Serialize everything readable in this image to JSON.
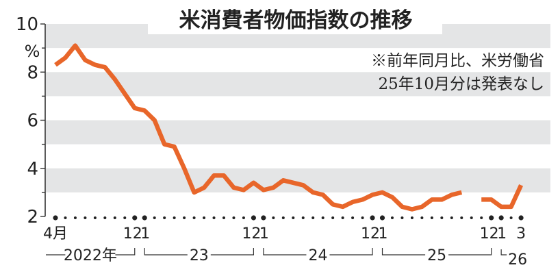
{
  "chart_data": {
    "type": "line",
    "title": "米消費者物価指数の推移",
    "xlabel": "",
    "ylabel": "%",
    "ylim": [
      2,
      10
    ],
    "y_ticks": [
      2,
      4,
      6,
      8,
      10
    ],
    "y_unit_label": "%",
    "grid": "alternating horizontal bands (3-4, 5-6, 7-8, 9-10 gray)",
    "notes": [
      "※前年同月比、米労働省",
      "25年10月分は発表なし"
    ],
    "x_start": "2022-04",
    "x_end": "2026-03",
    "x": [
      "2022-04",
      "2022-05",
      "2022-06",
      "2022-07",
      "2022-08",
      "2022-09",
      "2022-10",
      "2022-11",
      "2022-12",
      "2023-01",
      "2023-02",
      "2023-03",
      "2023-04",
      "2023-05",
      "2023-06",
      "2023-07",
      "2023-08",
      "2023-09",
      "2023-10",
      "2023-11",
      "2023-12",
      "2024-01",
      "2024-02",
      "2024-03",
      "2024-04",
      "2024-05",
      "2024-06",
      "2024-07",
      "2024-08",
      "2024-09",
      "2024-10",
      "2024-11",
      "2024-12",
      "2025-01",
      "2025-02",
      "2025-03",
      "2025-04",
      "2025-05",
      "2025-06",
      "2025-07",
      "2025-08",
      "2025-09",
      "2025-10",
      "2025-11",
      "2025-12",
      "2026-01",
      "2026-02",
      "2026-03"
    ],
    "series": [
      {
        "name": "米消費者物価指数（前年同月比）",
        "color": "#e8662a",
        "values": [
          8.3,
          8.6,
          9.1,
          8.5,
          8.3,
          8.2,
          7.7,
          7.1,
          6.5,
          6.4,
          6.0,
          5.0,
          4.9,
          4.0,
          3.0,
          3.2,
          3.7,
          3.7,
          3.2,
          3.1,
          3.4,
          3.1,
          3.2,
          3.5,
          3.4,
          3.3,
          3.0,
          2.9,
          2.5,
          2.4,
          2.6,
          2.7,
          2.9,
          3.0,
          2.8,
          2.4,
          2.3,
          2.4,
          2.7,
          2.7,
          2.9,
          3.0,
          null,
          2.7,
          2.7,
          2.4,
          2.4,
          3.3
        ]
      }
    ],
    "x_tick_labels": [
      {
        "month_index": 0,
        "label": "4月"
      },
      {
        "month_index": 8,
        "label": "12"
      },
      {
        "month_index": 9,
        "label": "1"
      },
      {
        "month_index": 20,
        "label": "12"
      },
      {
        "month_index": 21,
        "label": "1"
      },
      {
        "month_index": 32,
        "label": "12"
      },
      {
        "month_index": 33,
        "label": "1"
      },
      {
        "month_index": 44,
        "label": "12"
      },
      {
        "month_index": 45,
        "label": "1"
      },
      {
        "month_index": 47,
        "label": "3"
      }
    ],
    "year_labels": [
      {
        "label": "2022年",
        "from": 0,
        "to": 8
      },
      {
        "label": "23",
        "from": 9,
        "to": 20
      },
      {
        "label": "24",
        "from": 21,
        "to": 32
      },
      {
        "label": "25",
        "from": 33,
        "to": 44
      },
      {
        "label": "26",
        "from": 45,
        "to": 47
      }
    ]
  },
  "colors": {
    "line": "#e8662a",
    "band": "#e4e5e6",
    "axis": "#333333",
    "text": "#222222"
  }
}
